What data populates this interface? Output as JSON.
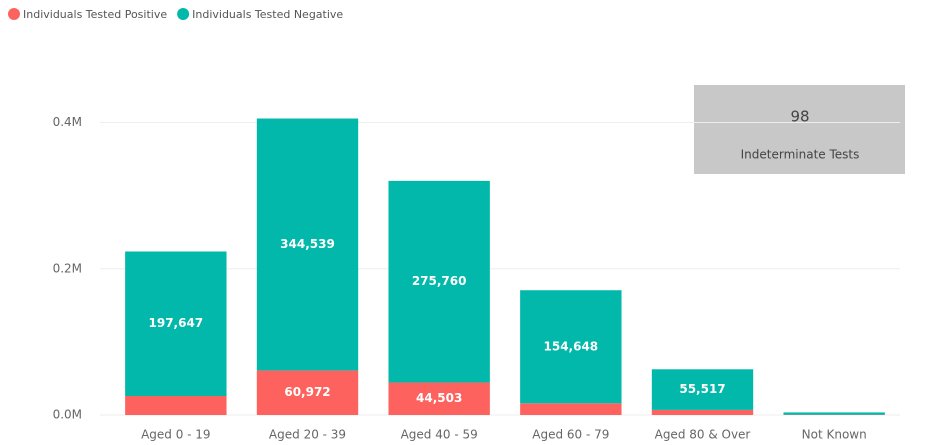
{
  "chart_data": {
    "type": "stacked_bar",
    "categories": [
      "Aged 0 - 19",
      "Aged 20 - 39",
      "Aged 40 - 59",
      "Aged 60 - 79",
      "Aged 80 & Over",
      "Not Known"
    ],
    "series": [
      {
        "name": "Individuals Tested Positive",
        "color": "#fd625e",
        "values": [
          26000,
          60972,
          44503,
          16000,
          7000,
          500
        ],
        "value_labels": [
          null,
          "60,972",
          "44,503",
          null,
          null,
          null
        ]
      },
      {
        "name": "Individuals Tested Negative",
        "color": "#01b8aa",
        "values": [
          197647,
          344539,
          275760,
          154648,
          55517,
          3000
        ],
        "value_labels": [
          "197,647",
          "344,539",
          "275,760",
          "154,648",
          "55,517",
          null
        ]
      }
    ],
    "ylim": [
      0,
      450000
    ],
    "yticks": [
      {
        "value": 0,
        "label": "0.0M"
      },
      {
        "value": 200000,
        "label": "0.2M"
      },
      {
        "value": 400000,
        "label": "0.4M"
      }
    ],
    "grid": true,
    "legend": "top-left",
    "card": {
      "value": 98,
      "label": "Indeterminate Tests"
    }
  }
}
